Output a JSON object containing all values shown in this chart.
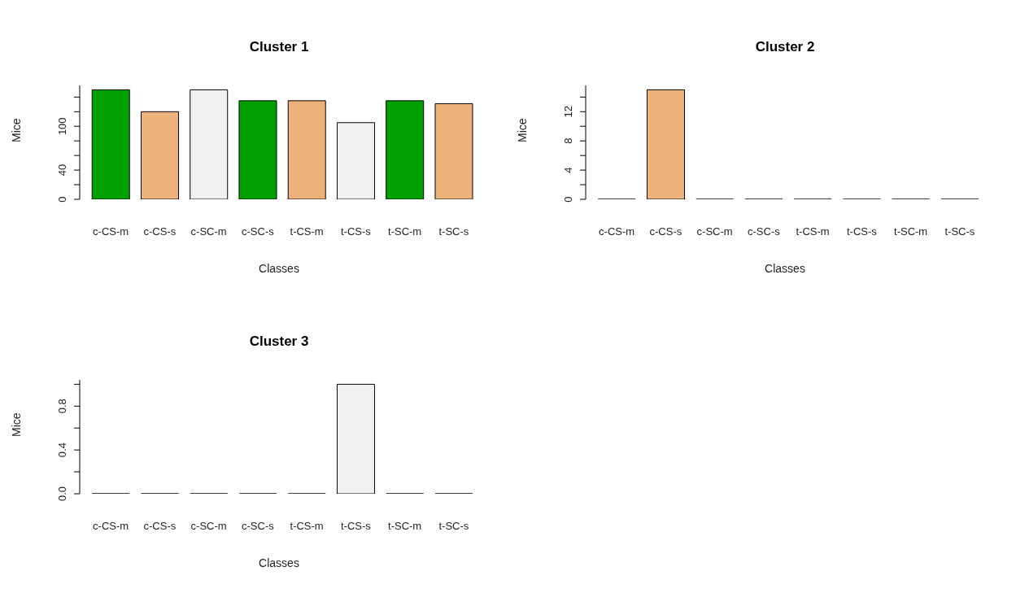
{
  "chart_data": [
    {
      "type": "bar",
      "title": "Cluster 1",
      "xlabel": "Classes",
      "ylabel": "Mice",
      "categories": [
        "c-CS-m",
        "c-CS-s",
        "c-SC-m",
        "c-SC-s",
        "t-CS-m",
        "t-CS-s",
        "t-SC-m",
        "t-SC-s"
      ],
      "values": [
        150,
        120,
        150,
        135,
        135,
        105,
        135,
        131
      ],
      "colors": [
        "#00a000",
        "#edb279",
        "#f0f0f0",
        "#00a000",
        "#edb279",
        "#f0f0f0",
        "#00a000",
        "#edb279"
      ],
      "ylim": [
        0,
        156
      ],
      "yticks": [
        0,
        {
          "value": 20,
          "label": null
        },
        40,
        {
          "value": 60,
          "label": null
        },
        {
          "value": 80,
          "label": null
        },
        100,
        {
          "value": 120,
          "label": null
        },
        {
          "value": 140,
          "label": null
        }
      ]
    },
    {
      "type": "bar",
      "title": "Cluster 2",
      "xlabel": "Classes",
      "ylabel": "Mice",
      "categories": [
        "c-CS-m",
        "c-CS-s",
        "c-SC-m",
        "c-SC-s",
        "t-CS-m",
        "t-CS-s",
        "t-SC-m",
        "t-SC-s"
      ],
      "values": [
        0,
        15,
        0,
        0,
        0,
        0,
        0,
        0
      ],
      "colors": [
        "#000000",
        "#edb279",
        "#000000",
        "#000000",
        "#000000",
        "#000000",
        "#000000",
        "#000000"
      ],
      "ylim": [
        0,
        15.6
      ],
      "yticks": [
        0,
        {
          "value": 2,
          "label": null
        },
        4,
        {
          "value": 6,
          "label": null
        },
        8,
        {
          "value": 10,
          "label": null
        },
        12,
        {
          "value": 14,
          "label": null
        }
      ]
    },
    {
      "type": "bar",
      "title": "Cluster 3",
      "xlabel": "Classes",
      "ylabel": "Mice",
      "categories": [
        "c-CS-m",
        "c-CS-s",
        "c-SC-m",
        "c-SC-s",
        "t-CS-m",
        "t-CS-s",
        "t-SC-m",
        "t-SC-s"
      ],
      "values": [
        0,
        0,
        0,
        0,
        0,
        1,
        0,
        0
      ],
      "colors": [
        "#000000",
        "#000000",
        "#000000",
        "#000000",
        "#000000",
        "#f0f0f0",
        "#000000",
        "#000000"
      ],
      "ylim": [
        0,
        1.04
      ],
      "yticks": [
        {
          "value": 0,
          "label": "0.0"
        },
        {
          "value": 0.2,
          "label": null
        },
        {
          "value": 0.4,
          "label": "0.4"
        },
        {
          "value": 0.6,
          "label": null
        },
        {
          "value": 0.8,
          "label": "0.8"
        },
        {
          "value": 1,
          "label": null
        }
      ]
    }
  ]
}
